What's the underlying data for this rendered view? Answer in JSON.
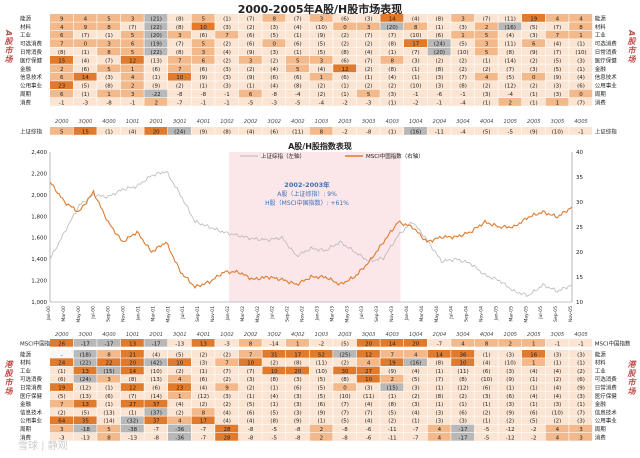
{
  "page_title": "2000-2005年A股/H股市场表现",
  "side_labels": {
    "a_left": "A股市场",
    "a_right": "A股市场",
    "h_left": "港股市场",
    "h_right": "港股市场"
  },
  "watermark": "雪球 | 静观",
  "colors": {
    "dark": "#e07b2e",
    "mid": "#f3b98a",
    "light": "#fbe4d2",
    "gray": "#b8b8b8",
    "neg": "#c0504d"
  },
  "quarters": [
    "2Q00",
    "3Q00",
    "4Q00",
    "1Q01",
    "2Q01",
    "3Q01",
    "4Q01",
    "1Q02",
    "2Q02",
    "3Q02",
    "4Q02",
    "1Q03",
    "2Q03",
    "3Q03",
    "4Q03",
    "1Q04",
    "2Q04",
    "3Q04",
    "4Q04",
    "1Q05",
    "2Q05",
    "3Q05",
    "4Q05"
  ],
  "quarters_bottom": [
    "2Q00",
    "3Q00",
    "4Q00",
    "1Q01",
    "2Q01",
    "3Q01",
    "4Q01",
    "1Q02",
    "2Q02",
    "3Q02",
    "4Q02",
    "1Q03",
    "2Q03",
    "3Q03",
    "4Q03",
    "1Q04",
    "2Q04",
    "3Q04",
    "4Q04",
    "1Q05",
    "2Q05",
    "3Q05",
    "4Q05"
  ],
  "a_table": {
    "rows": [
      {
        "label": "能源",
        "cells": [
          "9",
          "4",
          "5",
          "3",
          "(21)",
          "(8)",
          "5",
          "(1)",
          "(7)",
          "8",
          "(7)",
          "3",
          "(6)",
          "(3)",
          "14",
          "(4)",
          "(8)",
          "3",
          "(7)",
          "(11)",
          "19",
          "4",
          "4"
        ]
      },
      {
        "label": "材料",
        "cells": [
          "4",
          "9",
          "8",
          "(7)",
          "(22)",
          "(8)",
          "10",
          "(3)",
          "(2)",
          "(3)",
          "(4)",
          "(10)",
          "0",
          "3",
          "(20)",
          "8",
          "(1)",
          "(3)",
          "2",
          "(16)",
          "(5)",
          "(7)",
          "8"
        ]
      },
      {
        "label": "工业",
        "cells": [
          "6",
          "(7)",
          "(1)",
          "5",
          "(20)",
          "3",
          "(6)",
          "7",
          "(6)",
          "(5)",
          "(1)",
          "(9)",
          "(2)",
          "(7)",
          "(7)",
          "(10)",
          "(6)",
          "1",
          "5",
          "(4)",
          "(3)",
          "7",
          "1"
        ]
      },
      {
        "label": "可选消费",
        "cells": [
          "7",
          "0",
          "3",
          "6",
          "(19)",
          "(7)",
          "5",
          "(2)",
          "(6)",
          "0",
          "(6)",
          "(5)",
          "(2)",
          "(2)",
          "(8)",
          "17",
          "(24)",
          "(5)",
          "3",
          "(11)",
          "6",
          "(4)",
          "(1)"
        ]
      },
      {
        "label": "日常消费",
        "cells": [
          "(8)",
          "(1)",
          "8",
          "5",
          "(22)",
          "(8)",
          "3",
          "(4)",
          "(9)",
          "(3)",
          "(1)",
          "(5)",
          "(8)",
          "(4)",
          "(1)",
          "(7)",
          "(20)",
          "(10)",
          "5",
          "(8)",
          "(9)",
          "(7)",
          "(10)"
        ]
      },
      {
        "label": "医疗保健",
        "cells": [
          "15",
          "(4)",
          "(7)",
          "12",
          "(13)",
          "7",
          "6",
          "(2)",
          "3",
          "(2)",
          "5",
          "3",
          "(6)",
          "(7)",
          "8",
          "(3)",
          "(2)",
          "(2)",
          "(1)",
          "(14)",
          "(2)",
          "(5)",
          "(3)"
        ]
      },
      {
        "label": "金融",
        "cells": [
          "2",
          "(6)",
          "5",
          "1",
          "(6)",
          "7",
          "(6)",
          "(3)",
          "(2)",
          "(4)",
          "5",
          "(4)",
          "12",
          "(2)",
          "(8)",
          "(1)",
          "(8)",
          "(2)",
          "(2)",
          "(7)",
          "(3)",
          "(5)",
          "(1)"
        ]
      },
      {
        "label": "信息技术",
        "cells": [
          "6",
          "14",
          "(3)",
          "4",
          "(1)",
          "10",
          "(9)",
          "(3)",
          "(9)",
          "(6)",
          "(6)",
          "1",
          "(6)",
          "(1)",
          "(4)",
          "(1)",
          "(3)",
          "(7)",
          "4",
          "(5)",
          "0",
          "(9)",
          "(4)"
        ]
      },
      {
        "label": "公用事业",
        "cells": [
          "23",
          "(5)",
          "(8)",
          "2",
          "(9)",
          "(2)",
          "(1)",
          "(3)",
          "(1)",
          "(4)",
          "(8)",
          "(2)",
          "(1)",
          "(2)",
          "(2)",
          "(10)",
          "(3)",
          "(8)",
          "(2)",
          "(12)",
          "(2)",
          "(3)",
          "(6)"
        ]
      },
      {
        "label": "周期",
        "cells": [
          "6",
          "(1)",
          "1",
          "3",
          "-22",
          "-8",
          "-8",
          "-1",
          "6",
          "-8",
          "-4",
          "(2)",
          "(1)",
          "5",
          "(3)",
          "-1",
          "-6",
          "-1",
          "(3)",
          "-4",
          "(1)",
          "(3)",
          "0"
        ]
      },
      {
        "label": "消费",
        "cells": [
          "-1",
          "-3",
          "-8",
          "-1",
          "2",
          "-7",
          "-1",
          "-1",
          "-5",
          "-3",
          "-5",
          "-4",
          "-2",
          "-3",
          "(1)",
          "-2",
          "-1",
          "-4",
          "(1)",
          "2",
          "(1)",
          "1",
          "(7)"
        ]
      }
    ],
    "index_row": {
      "label": "上证综指",
      "cells": [
        "5",
        "15",
        "(1)",
        "(4)",
        "20",
        "(24)",
        "(9)",
        "(8)",
        "(4)",
        "(6)",
        "(11)",
        "8",
        "-2",
        "-8",
        "(1)",
        "(16)",
        "-11",
        "-4",
        "(5)",
        "-5",
        "(9)",
        "(10)",
        "-1"
      ]
    }
  },
  "h_table": {
    "index_row": {
      "label": "MSCI中国指数",
      "cells": [
        "26",
        "-17",
        "-17",
        "13",
        "-17",
        "-13",
        "13",
        "-3",
        "8",
        "-14",
        "1",
        "-2",
        "(5)",
        "20",
        "14",
        "20",
        "-7",
        "4",
        "8",
        "2",
        "1",
        "-1",
        "-1"
      ]
    },
    "rows": [
      {
        "label": "能源",
        "cells": [
          "-",
          "(18)",
          "8",
          "21",
          "(4)",
          "(5)",
          "(2)",
          "(2)",
          "7",
          "31",
          "17",
          "52",
          "(25)",
          "12",
          "7",
          "4",
          "14",
          "36",
          "(1)",
          "(3)",
          "16",
          "(3)",
          "(3)"
        ]
      },
      {
        "label": "材料",
        "cells": [
          "24",
          "(22)",
          "22",
          "20",
          "(42)",
          "10",
          "(3)",
          "7",
          "10",
          "(2)",
          "(8)",
          "(11)",
          "(2)",
          "4",
          "19",
          "(16)",
          "(8)",
          "10",
          "(4)",
          "(10)",
          "1",
          "(1)",
          "(1)"
        ]
      },
      {
        "label": "工业",
        "cells": [
          "(1)",
          "13",
          "(15)",
          "14",
          "(10)",
          "(2)",
          "(1)",
          "(7)",
          "(7)",
          "10",
          "20",
          "(10)",
          "30",
          "27",
          "(9)",
          "(4)",
          "(1)",
          "(11)",
          "(6)",
          "(3)",
          "(4)",
          "(4)",
          "(2)"
        ]
      },
      {
        "label": "可选消费",
        "cells": [
          "(6)",
          "(24)",
          "3",
          "(8)",
          "(13)",
          "4",
          "(6)",
          "(2)",
          "(3)",
          "(8)",
          "(3)",
          "(5)",
          "(8)",
          "10",
          "2",
          "(5)",
          "(7)",
          "(8)",
          "(10)",
          "(9)",
          "(1)",
          "(2)",
          "(6)"
        ]
      },
      {
        "label": "日常消费",
        "cells": [
          "19",
          "(12)",
          "(1)",
          "12",
          "(6)",
          "23",
          "(4)",
          "9",
          "(2)",
          "(1)",
          "(6)",
          "(5)",
          "0",
          "(3)",
          "(15)",
          "(3)",
          "(1)",
          "(12)",
          "(6)",
          "(1)",
          "(1)",
          "(4)",
          "(9)"
        ]
      },
      {
        "label": "医疗保健",
        "cells": [
          "(5)",
          "(13)",
          "(6)",
          "(7)",
          "(14)",
          "1",
          "(12)",
          "(3)",
          "(1)",
          "(4)",
          "(3)",
          "(5)",
          "(10)",
          "(11)",
          "(1)",
          "(2)",
          "(8)",
          "(2)",
          "(3)",
          "(6)",
          "(4)",
          "(4)",
          "(3)"
        ]
      },
      {
        "label": "金融",
        "cells": [
          "7",
          "13",
          "(1)",
          "27",
          "37",
          "(4)",
          "(2)",
          "(2)",
          "(5)",
          "(1)",
          "(3)",
          "(6)",
          "(7)",
          "(4)",
          "(8)",
          "(3)",
          "(1)",
          "(1)",
          "(1)",
          "(3)",
          "(1)",
          "(3)",
          "(1)"
        ]
      },
      {
        "label": "信息技术",
        "cells": [
          "(2)",
          "(5)",
          "(13)",
          "(1)",
          "(37)",
          "(2)",
          "8",
          "(4)",
          "(6)",
          "(5)",
          "(3)",
          "(9)",
          "(7)",
          "(7)",
          "(5)",
          "(4)",
          "(3)",
          "(6)",
          "(2)",
          "(9)",
          "(6)",
          "(10)",
          "(7)"
        ]
      },
      {
        "label": "公用事业",
        "cells": [
          "64",
          "35",
          "(14)",
          "(32)",
          "37",
          "4",
          "17",
          "(4)",
          "(4)",
          "(8)",
          "(9)",
          "(1)",
          "(5)",
          "(4)",
          "(2)",
          "(1)",
          "(3)",
          "(3)",
          "(1)",
          "(2)",
          "(5)",
          "(2)",
          "(3)"
        ]
      },
      {
        "label": "周期",
        "cells": [
          "3",
          "-18",
          "5",
          "-38",
          "-7",
          "-36",
          "-7",
          "28",
          "-8",
          "-5",
          "-8",
          "2",
          "-8",
          "-6",
          "-11",
          "-7",
          "4",
          "-17",
          "-5",
          "-12",
          "-2",
          "4",
          "3"
        ]
      },
      {
        "label": "消费",
        "cells": [
          "-3",
          "-13",
          "8",
          "-13",
          "-8",
          "-36",
          "-7",
          "28",
          "-8",
          "-5",
          "-8",
          "2",
          "-8",
          "-6",
          "-11",
          "-7",
          "4",
          "-17",
          "-5",
          "-12",
          "-2",
          "4",
          "3"
        ]
      }
    ]
  },
  "chart_data": {
    "type": "line",
    "title": "A股/H股指数表现",
    "series": [
      {
        "name": "上证综指（左轴）",
        "axis": "left",
        "color": "#b8b8b8",
        "x": [
          "Jan-00",
          "Mar-00",
          "May-00",
          "Jul-00",
          "Sep-00",
          "Nov-00",
          "Jan-01",
          "Mar-01",
          "May-01",
          "Jul-01",
          "Sep-01",
          "Nov-01",
          "Jan-02",
          "Mar-02",
          "May-02",
          "Jul-02",
          "Sep-02",
          "Nov-02",
          "Jan-03",
          "Mar-03",
          "May-03",
          "Jul-03",
          "Sep-03",
          "Nov-03",
          "Jan-04",
          "Mar-04",
          "May-04",
          "Jul-04",
          "Sep-04",
          "Nov-04",
          "Jan-05",
          "Mar-05",
          "May-05",
          "Jul-05",
          "Sep-05",
          "Nov-05",
          "Dec-05"
        ],
        "values": [
          1400,
          1650,
          1900,
          2000,
          1980,
          2050,
          2080,
          2180,
          2220,
          2000,
          1750,
          1700,
          1650,
          1620,
          1590,
          1580,
          1600,
          1430,
          1500,
          1480,
          1560,
          1470,
          1380,
          1410,
          1620,
          1750,
          1580,
          1380,
          1400,
          1360,
          1250,
          1200,
          1100,
          1060,
          1160,
          1100,
          1160
        ]
      },
      {
        "name": "MSCI中国指数（右轴）",
        "axis": "right",
        "color": "#e07b2e",
        "x": [
          "Jan-00",
          "Mar-00",
          "May-00",
          "Jul-00",
          "Sep-00",
          "Nov-00",
          "Jan-01",
          "Mar-01",
          "May-01",
          "Jul-01",
          "Sep-01",
          "Nov-01",
          "Jan-02",
          "Mar-02",
          "May-02",
          "Jul-02",
          "Sep-02",
          "Nov-02",
          "Jan-03",
          "Mar-03",
          "May-03",
          "Jul-03",
          "Sep-03",
          "Nov-03",
          "Jan-04",
          "Mar-04",
          "May-04",
          "Jul-04",
          "Sep-04",
          "Nov-04",
          "Jan-05",
          "Mar-05",
          "May-05",
          "Jul-05",
          "Sep-05",
          "Nov-05",
          "Dec-05"
        ],
        "values": [
          34,
          30,
          28,
          32,
          26,
          22,
          24,
          20,
          22,
          16,
          13,
          14,
          16,
          16,
          14.5,
          15,
          14.5,
          13.5,
          15,
          15,
          13.5,
          15,
          18,
          22,
          26,
          25,
          22,
          23,
          23,
          24,
          26,
          25,
          25,
          27,
          28,
          27,
          29
        ]
      }
    ],
    "x_ticks": [
      "Jan-00",
      "Mar-00",
      "May-00",
      "Jul-00",
      "Sep-00",
      "Nov-00",
      "Jan-01",
      "Mar-01",
      "May-01",
      "Jul-01",
      "Sep-01",
      "Nov-01",
      "Jan-02",
      "Mar-02",
      "May-02",
      "Jul-02",
      "Sep-02",
      "Nov-02",
      "Jan-03",
      "Mar-03",
      "May-03",
      "Jul-03",
      "Sep-03",
      "Nov-03",
      "Jan-04",
      "Mar-04",
      "May-04",
      "Jul-04",
      "Sep-04",
      "Nov-04",
      "Jan-05",
      "Mar-05",
      "May-05",
      "Jul-05",
      "Sep-05",
      "Nov-05"
    ],
    "y_left": {
      "ticks": [
        "1,000",
        "1,200",
        "1,400",
        "1,600",
        "1,800",
        "2,000",
        "2,200",
        "2,400"
      ],
      "ylim": [
        1000,
        2400
      ]
    },
    "y_right": {
      "ticks": [
        "10",
        "15",
        "20",
        "25",
        "30",
        "35",
        "40"
      ],
      "ylim": [
        10,
        40
      ]
    },
    "highlight": {
      "from": "Jan-02",
      "to": "Dec-03"
    },
    "annotation": {
      "line1": "2002-2003年",
      "line2": "A股（上证综指）: 9%",
      "line3": "H股（MSCI中国指数）: +61%"
    },
    "legend_position": "top-right"
  }
}
